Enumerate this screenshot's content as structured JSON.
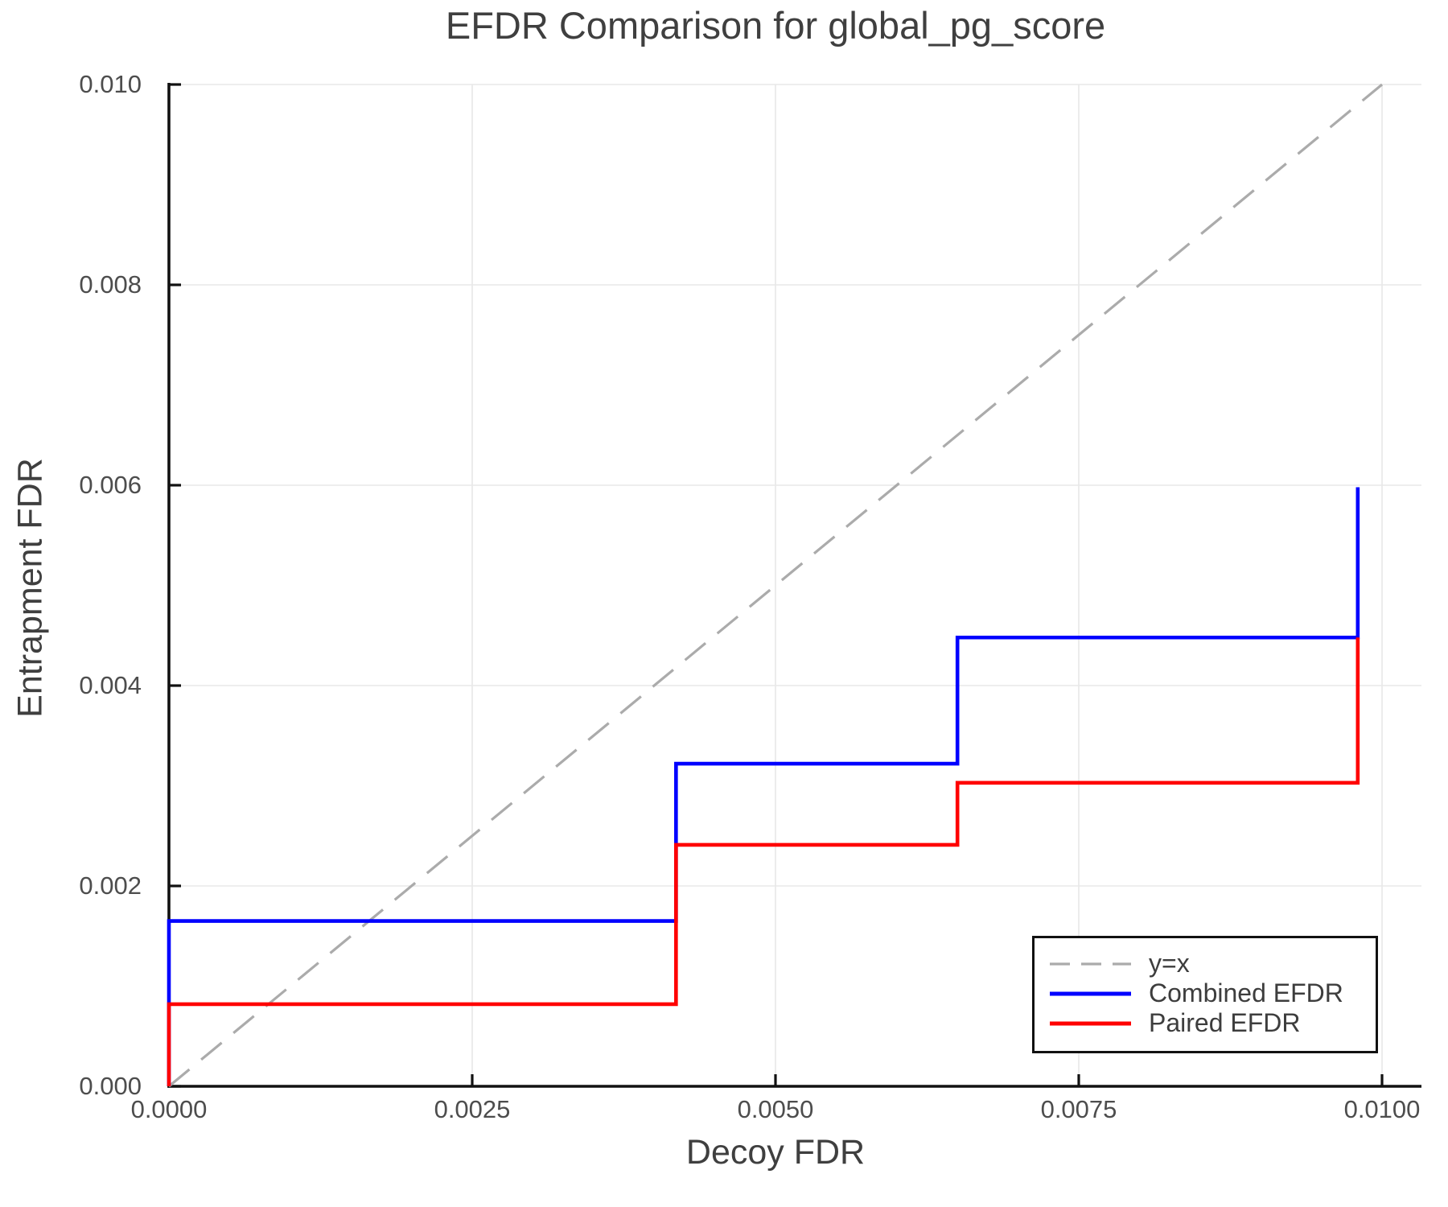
{
  "chart_data": {
    "type": "line",
    "title": "EFDR Comparison for global_pg_score",
    "xlabel": "Decoy FDR",
    "ylabel": "Entrapment FDR",
    "xlim": [
      0.0,
      0.01
    ],
    "ylim": [
      0.0,
      0.01
    ],
    "grid": true,
    "legend_position": "lower right",
    "x_ticks": [
      {
        "value": 0.0,
        "label": "0.0000"
      },
      {
        "value": 0.0025,
        "label": "0.0025"
      },
      {
        "value": 0.005,
        "label": "0.0050"
      },
      {
        "value": 0.0075,
        "label": "0.0075"
      },
      {
        "value": 0.01,
        "label": "0.0100"
      }
    ],
    "y_ticks": [
      {
        "value": 0.0,
        "label": "0.000"
      },
      {
        "value": 0.002,
        "label": "0.002"
      },
      {
        "value": 0.004,
        "label": "0.004"
      },
      {
        "value": 0.006,
        "label": "0.006"
      },
      {
        "value": 0.008,
        "label": "0.008"
      },
      {
        "value": 0.01,
        "label": "0.010"
      }
    ],
    "series": [
      {
        "name": "y=x",
        "color": "#ababab",
        "style": "dashed",
        "width": 3.2,
        "points": [
          [
            0.0,
            0.0
          ],
          [
            0.01,
            0.01
          ]
        ]
      },
      {
        "name": "Combined EFDR",
        "color": "#0000ff",
        "style": "solid",
        "width": 4.6,
        "points": [
          [
            0.0,
            0.0
          ],
          [
            0.0,
            0.00165
          ],
          [
            0.00418,
            0.00165
          ],
          [
            0.00418,
            0.00322
          ],
          [
            0.0065,
            0.00322
          ],
          [
            0.0065,
            0.00448
          ],
          [
            0.0098,
            0.00448
          ],
          [
            0.0098,
            0.00598
          ]
        ]
      },
      {
        "name": "Paired EFDR",
        "color": "#ff0000",
        "style": "solid",
        "width": 4.6,
        "points": [
          [
            0.0,
            0.0
          ],
          [
            0.0,
            0.00082
          ],
          [
            0.00418,
            0.00082
          ],
          [
            0.00418,
            0.00241
          ],
          [
            0.0065,
            0.00241
          ],
          [
            0.0065,
            0.00303
          ],
          [
            0.0098,
            0.00303
          ],
          [
            0.0098,
            0.00448
          ]
        ]
      }
    ],
    "colors": {
      "grid": "#e8e8e8",
      "spine": "#111111",
      "dashed_line": "#ababab",
      "combined": "#0000ff",
      "paired": "#ff0000",
      "text": "#3f3f3f",
      "tick_text": "#4d4d4d"
    }
  }
}
